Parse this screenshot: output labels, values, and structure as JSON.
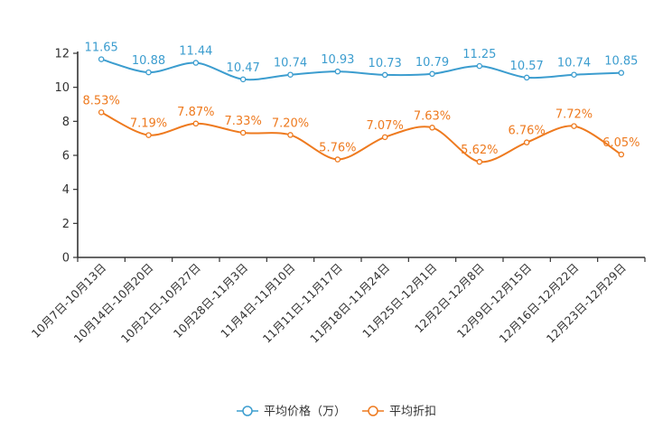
{
  "chart_data": {
    "type": "line",
    "title": "",
    "xlabel": "",
    "ylabel": "",
    "ylim": [
      0,
      12
    ],
    "yticks": [
      0,
      2,
      4,
      6,
      8,
      10,
      12
    ],
    "grid": false,
    "legend_position": "bottom-center",
    "categories": [
      "10月7日-10月13日",
      "10月14日-10月20日",
      "10月21日-10月27日",
      "10月28日-11月3日",
      "11月4日-11月10日",
      "11月11日-11月17日",
      "11月18日-11月24日",
      "11月25日-12月1日",
      "12月2日-12月8日",
      "12月9日-12月15日",
      "12月16日-12月22日",
      "12月23日-12月29日"
    ],
    "series": [
      {
        "name": "平均价格（万）",
        "color": "#3c9dcf",
        "values": [
          11.65,
          10.88,
          11.44,
          10.47,
          10.74,
          10.93,
          10.73,
          10.79,
          11.25,
          10.57,
          10.74,
          10.85
        ],
        "labels": [
          "11.65",
          "10.88",
          "11.44",
          "10.47",
          "10.74",
          "10.93",
          "10.73",
          "10.79",
          "11.25",
          "10.57",
          "10.74",
          "10.85"
        ]
      },
      {
        "name": "平均折扣",
        "color": "#ee7a1f",
        "values": [
          8.53,
          7.19,
          7.87,
          7.33,
          7.2,
          5.76,
          7.07,
          7.63,
          5.62,
          6.76,
          7.72,
          6.05
        ],
        "labels": [
          "8.53%",
          "7.19%",
          "7.87%",
          "7.33%",
          "7.20%",
          "5.76%",
          "7.07%",
          "7.63%",
          "5.62%",
          "6.76%",
          "7.72%",
          "6.05%"
        ]
      }
    ]
  }
}
